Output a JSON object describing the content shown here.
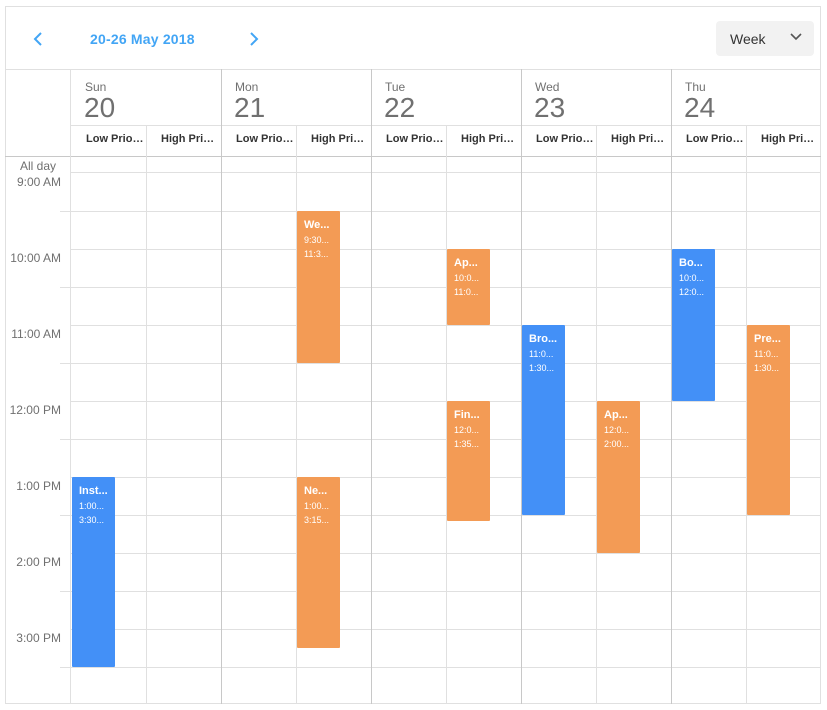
{
  "toolbar": {
    "period_label": "20-26 May 2018",
    "view_selected": "Week",
    "prev_icon": "chevron-left-icon",
    "next_icon": "chevron-right-icon",
    "dropdown_icon": "chevron-down-icon",
    "accent_color": "#42a5f5"
  },
  "days": [
    {
      "name": "Sun",
      "num": "20"
    },
    {
      "name": "Mon",
      "num": "21"
    },
    {
      "name": "Tue",
      "num": "22"
    },
    {
      "name": "Wed",
      "num": "23"
    },
    {
      "name": "Thu",
      "num": "24"
    }
  ],
  "groups": [
    [
      "Low Priority",
      "High Priority"
    ],
    [
      "Low Priority",
      "High Priority"
    ],
    [
      "Low Priority",
      "High Priority"
    ],
    [
      "Low Priority",
      "High Priority"
    ],
    [
      "Low Priority",
      "High Priority"
    ]
  ],
  "all_day_label": "All day",
  "time_labels": [
    "9:00 AM",
    "10:00 AM",
    "11:00 AM",
    "12:00 PM",
    "1:00 PM",
    "2:00 PM",
    "3:00 PM"
  ],
  "colors": {
    "blue": "#4390f7",
    "orange": "#f39b55"
  },
  "appointments": [
    {
      "title": "Inst...",
      "start": "1:00...",
      "end": "3:30...",
      "day": 0,
      "group": 0,
      "color": "blue"
    },
    {
      "title": "We...",
      "start": "9:30...",
      "end": "11:3...",
      "day": 1,
      "group": 1,
      "color": "orange"
    },
    {
      "title": "Ne...",
      "start": "1:00...",
      "end": "3:15...",
      "day": 1,
      "group": 1,
      "color": "orange"
    },
    {
      "title": "Ap...",
      "start": "10:0...",
      "end": "11:0...",
      "day": 2,
      "group": 1,
      "color": "orange"
    },
    {
      "title": "Fin...",
      "start": "12:0...",
      "end": "1:35...",
      "day": 2,
      "group": 1,
      "color": "orange"
    },
    {
      "title": "Bro...",
      "start": "11:0...",
      "end": "1:30...",
      "day": 3,
      "group": 0,
      "color": "blue"
    },
    {
      "title": "Ap...",
      "start": "12:0...",
      "end": "2:00...",
      "day": 3,
      "group": 1,
      "color": "orange"
    },
    {
      "title": "Bo...",
      "start": "10:0...",
      "end": "12:0...",
      "day": 4,
      "group": 0,
      "color": "blue"
    },
    {
      "title": "Pre...",
      "start": "11:0...",
      "end": "1:30...",
      "day": 4,
      "group": 1,
      "color": "orange"
    }
  ]
}
